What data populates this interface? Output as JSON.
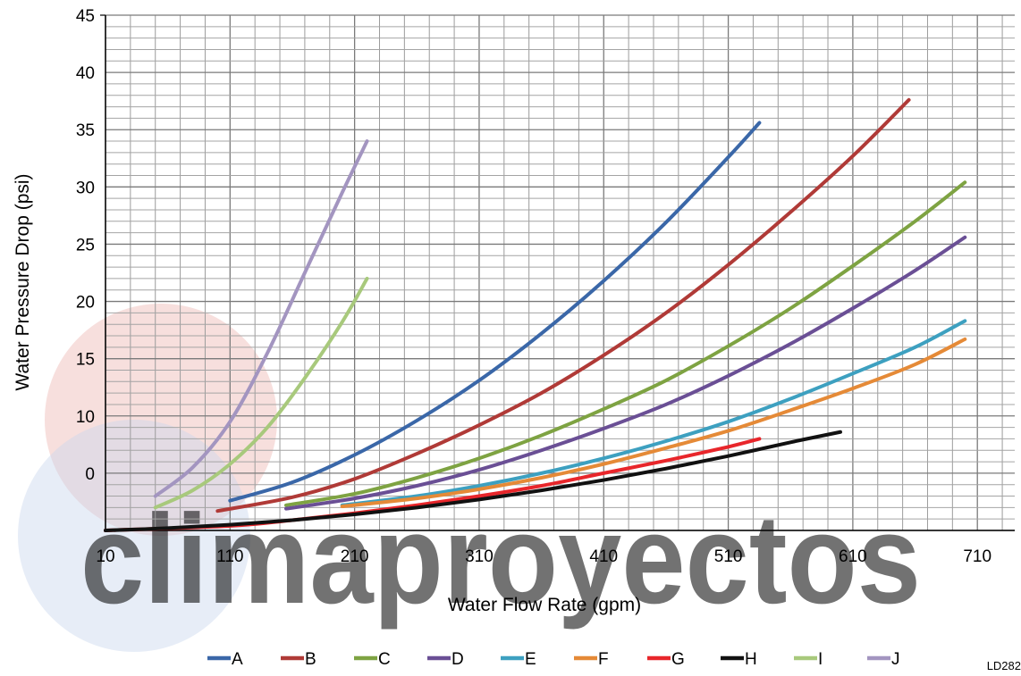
{
  "chart_data": {
    "type": "line",
    "title": "",
    "xlabel": "Water Flow Rate (gpm)",
    "ylabel": "Water Pressure Drop (psi)",
    "xlim": [
      10,
      740
    ],
    "ylim": [
      0,
      45
    ],
    "x_ticks": [
      "10",
      "110",
      "210",
      "310",
      "410",
      "510",
      "610",
      "710"
    ],
    "y_ticks": [
      "45",
      "40",
      "35",
      "30",
      "25",
      "20",
      "15",
      "10",
      "0"
    ],
    "grid": true,
    "legend_position": "bottom",
    "series": [
      {
        "name": "A",
        "color": "#3a67a8",
        "x": [
          110,
          160,
          210,
          260,
          310,
          360,
          410,
          460,
          510,
          535
        ],
        "y": [
          2.6,
          4.2,
          6.6,
          9.6,
          13.1,
          17.2,
          21.8,
          26.9,
          32.6,
          35.6
        ]
      },
      {
        "name": "B",
        "color": "#b03a37",
        "x": [
          100,
          160,
          210,
          260,
          310,
          360,
          410,
          460,
          510,
          560,
          610,
          655
        ],
        "y": [
          1.7,
          2.9,
          4.5,
          6.7,
          9.2,
          12.0,
          15.3,
          19.0,
          23.2,
          27.8,
          32.7,
          37.6
        ]
      },
      {
        "name": "C",
        "color": "#7ea342",
        "x": [
          155,
          210,
          260,
          310,
          360,
          410,
          460,
          510,
          560,
          610,
          660,
          700
        ],
        "y": [
          2.2,
          3.2,
          4.6,
          6.3,
          8.3,
          10.6,
          13.1,
          16.1,
          19.4,
          23.1,
          27.0,
          30.4
        ]
      },
      {
        "name": "D",
        "color": "#6a4f95",
        "x": [
          155,
          210,
          260,
          310,
          360,
          410,
          460,
          510,
          560,
          610,
          660,
          700
        ],
        "y": [
          1.9,
          2.8,
          3.9,
          5.3,
          7.0,
          8.9,
          11.0,
          13.5,
          16.3,
          19.4,
          22.7,
          25.6
        ]
      },
      {
        "name": "E",
        "color": "#3da0c0",
        "x": [
          200,
          260,
          310,
          360,
          410,
          460,
          510,
          560,
          610,
          660,
          700
        ],
        "y": [
          2.2,
          3.0,
          3.9,
          5.0,
          6.3,
          7.8,
          9.5,
          11.5,
          13.7,
          16.0,
          18.3
        ]
      },
      {
        "name": "F",
        "color": "#e58a37",
        "x": [
          200,
          260,
          310,
          360,
          410,
          460,
          510,
          560,
          610,
          660,
          700
        ],
        "y": [
          2.1,
          2.8,
          3.6,
          4.6,
          5.8,
          7.2,
          8.7,
          10.5,
          12.4,
          14.5,
          16.7
        ]
      },
      {
        "name": "G",
        "color": "#e8262b",
        "x": [
          10,
          110,
          160,
          210,
          260,
          310,
          360,
          410,
          460,
          510,
          535
        ],
        "y": [
          0,
          0.4,
          0.9,
          1.5,
          2.2,
          3.0,
          3.9,
          5.0,
          6.1,
          7.3,
          8.0
        ]
      },
      {
        "name": "H",
        "color": "#111111",
        "x": [
          10,
          60,
          110,
          160,
          210,
          260,
          310,
          360,
          410,
          460,
          510,
          560,
          600
        ],
        "y": [
          0,
          0.2,
          0.5,
          0.9,
          1.4,
          2.0,
          2.7,
          3.5,
          4.4,
          5.4,
          6.5,
          7.7,
          8.6
        ]
      },
      {
        "name": "I",
        "color": "#a8c97c",
        "x": [
          50,
          80,
          110,
          140,
          170,
          200,
          220
        ],
        "y": [
          2.0,
          3.5,
          5.8,
          9.0,
          13.3,
          18.2,
          22.0
        ]
      },
      {
        "name": "J",
        "color": "#a395c0",
        "x": [
          50,
          80,
          110,
          140,
          170,
          200,
          220
        ],
        "y": [
          3.0,
          5.5,
          9.5,
          15.5,
          22.5,
          29.5,
          34.0
        ]
      }
    ]
  },
  "watermark": {
    "text": "climaproyectos",
    "color": "#7b8aa0"
  },
  "figure_code": "LD282"
}
